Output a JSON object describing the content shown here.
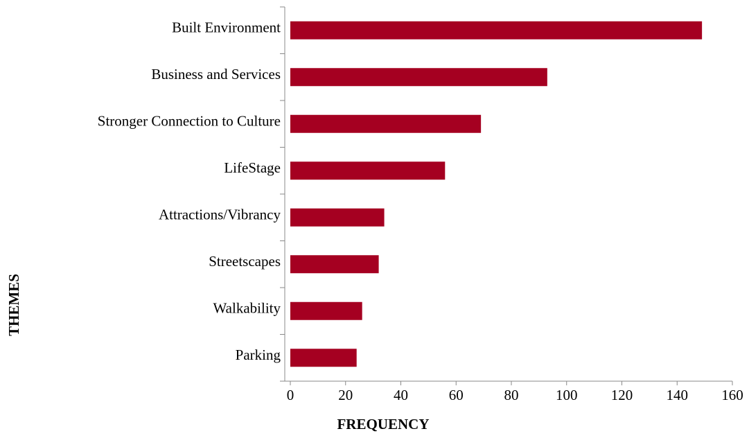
{
  "chart_data": {
    "type": "bar",
    "orientation": "horizontal",
    "x_label": "FREQUENCY",
    "y_label": "THEMES",
    "categories": [
      "Built Environment",
      "Business and Services",
      "Stronger Connection to Culture",
      "LifeStage",
      "Attractions/Vibrancy",
      "Streetscapes",
      "Walkability",
      "Parking"
    ],
    "values": [
      149,
      93,
      69,
      56,
      34,
      32,
      26,
      24
    ],
    "color": "#a50021",
    "xlim": [
      0,
      160
    ],
    "xticks": [
      0,
      20,
      40,
      60,
      80,
      100,
      120,
      140,
      160
    ],
    "grid": false
  }
}
